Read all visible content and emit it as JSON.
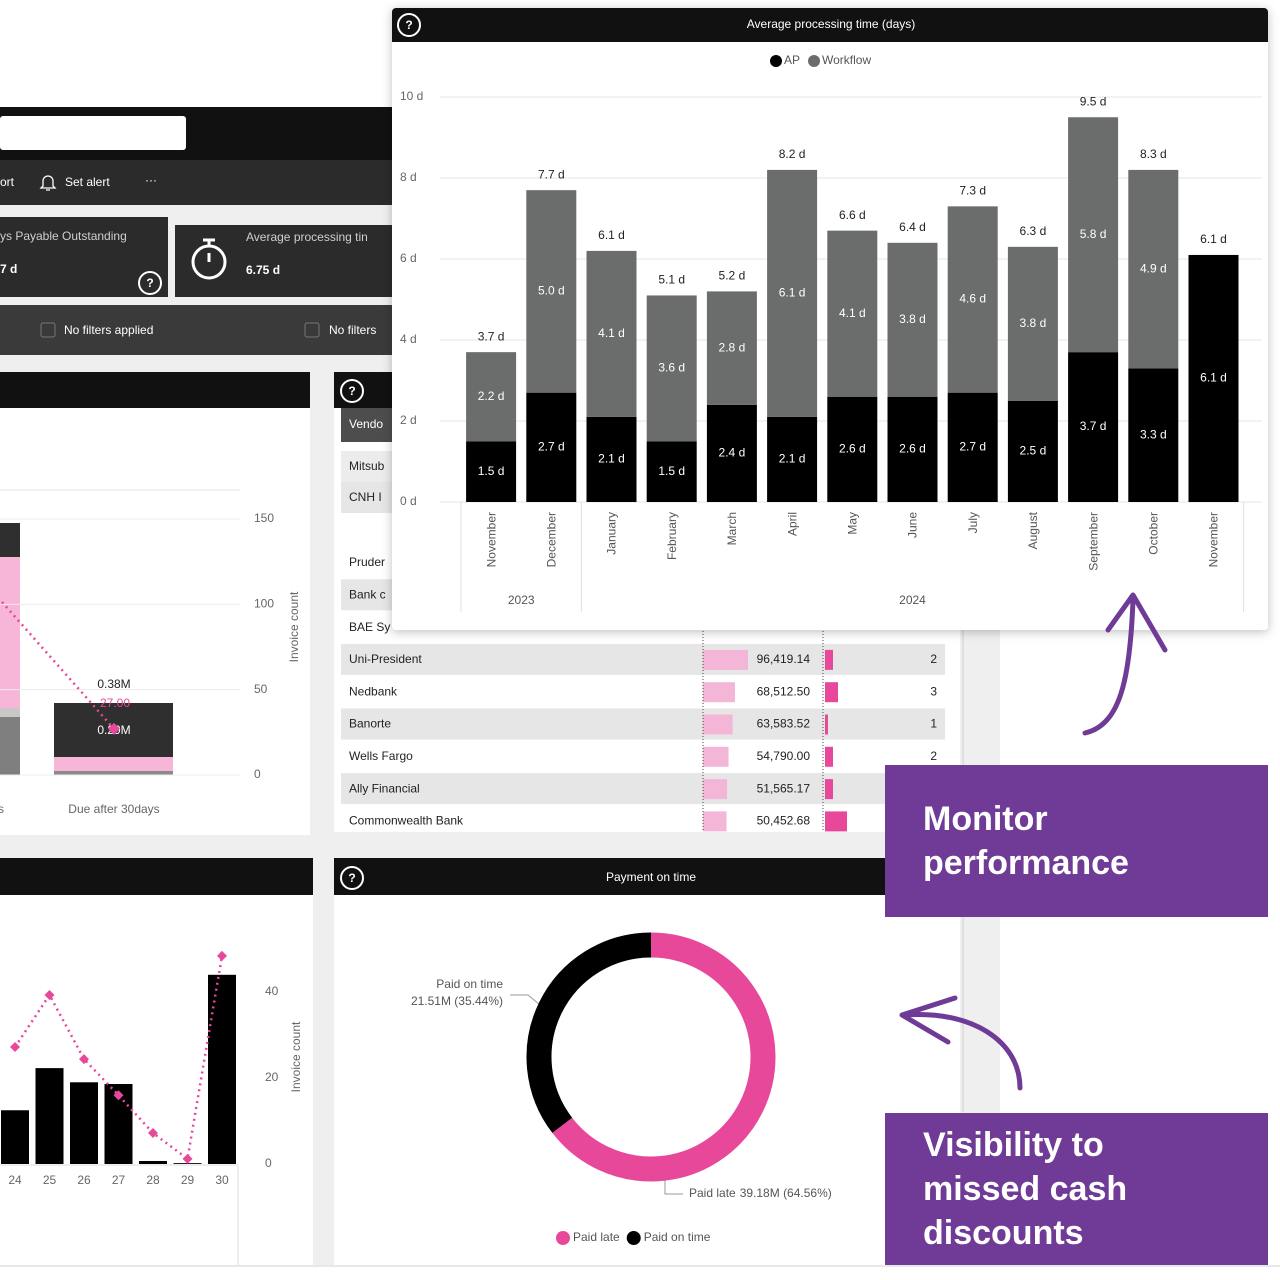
{
  "toolbar": {
    "items": [
      "ort",
      "Set alert",
      "···"
    ]
  },
  "kpis": [
    {
      "label": "ys Payable Outstanding",
      "value": "7 d"
    },
    {
      "label": "Average processing tin",
      "value": "6.75 d"
    }
  ],
  "filters": [
    "No filters applied",
    "No filters"
  ],
  "table": {
    "header": "Vendo",
    "rows": [
      [
        "Mitsub"
      ],
      [
        "CNH I"
      ],
      [
        "Pruder"
      ],
      [
        "Bank c"
      ],
      [
        "BAE Sy"
      ],
      [
        "Uni-President",
        {
          "value": 96419.14,
          "label": "96,419.14"
        },
        2
      ],
      [
        "Nedbank",
        {
          "value": 68512.5,
          "label": "68,512.50"
        },
        3
      ],
      [
        "Banorte",
        {
          "value": 63583.52,
          "label": "63,583.52"
        },
        1
      ],
      [
        "Wells Fargo",
        {
          "value": 54790.0,
          "label": "54,790.00"
        },
        2
      ],
      [
        "Ally Financial",
        {
          "value": 51565.17,
          "label": "51,565.17"
        }
      ],
      [
        "Commonwealth Bank",
        {
          "value": 50452.68,
          "label": "50,452.68"
        }
      ]
    ]
  },
  "callouts": [
    "Monitor performance",
    "Visibility to missed cash discounts"
  ],
  "chart_data": [
    {
      "type": "bar",
      "stacked": true,
      "title": "Average processing time (days)",
      "categories": [
        "November",
        "December",
        "January",
        "February",
        "March",
        "April",
        "May",
        "June",
        "July",
        "August",
        "September",
        "October",
        "November"
      ],
      "groups": [
        {
          "label": "2023",
          "count": 2
        },
        {
          "label": "2024",
          "count": 11
        }
      ],
      "series": [
        {
          "name": "AP",
          "color": "#000000",
          "values": [
            1.5,
            2.7,
            2.1,
            1.5,
            2.4,
            2.1,
            2.6,
            2.6,
            2.7,
            2.5,
            3.7,
            3.3,
            6.1
          ],
          "value_labels": [
            "1.5 d",
            "2.7 d",
            "2.1 d",
            "1.5 d",
            "2.4 d",
            "2.1 d",
            "2.6 d",
            "2.6 d",
            "2.7 d",
            "2.5 d",
            "3.7 d",
            "3.3 d",
            "6.1 d"
          ]
        },
        {
          "name": "Workflow",
          "color": "#6b6c6c",
          "values": [
            2.2,
            5.0,
            4.1,
            3.6,
            2.8,
            6.1,
            4.1,
            3.8,
            4.6,
            3.8,
            5.8,
            4.9,
            null
          ],
          "value_labels": [
            "2.2 d",
            "5.0 d",
            "4.1 d",
            "3.6 d",
            "2.8 d",
            "6.1 d",
            "4.1 d",
            "3.8 d",
            "4.6 d",
            "3.8 d",
            "5.8 d",
            "4.9 d",
            null
          ]
        }
      ],
      "total_labels": [
        "3.7 d",
        "7.7 d",
        "6.1 d",
        "5.1 d",
        "5.2 d",
        "8.2 d",
        "6.6 d",
        "6.4 d",
        "7.3 d",
        "6.3 d",
        "9.5 d",
        "8.3 d",
        "6.1 d"
      ],
      "ylim": [
        0,
        10
      ],
      "yticks": [
        {
          "value": 0,
          "label": "0 d"
        },
        {
          "value": 2,
          "label": "2 d"
        },
        {
          "value": 4,
          "label": "4 d"
        },
        {
          "value": 6,
          "label": "6 d"
        },
        {
          "value": 8,
          "label": "8 d"
        },
        {
          "value": 10,
          "label": "10 d"
        }
      ],
      "grid": true
    },
    {
      "type": "pie",
      "donut": true,
      "title": "Payment on time",
      "categories": [
        "Paid late",
        "Paid on time"
      ],
      "values": [
        64.56,
        35.44
      ],
      "value_labels": [
        "39.18M (64.56%)",
        "21.51M (35.44%)"
      ],
      "colors": [
        "#e8489a",
        "#000000"
      ]
    },
    {
      "type": "bar",
      "categories": [
        "ys",
        "Due after 30days"
      ],
      "y2label": "Invoice count",
      "y2lim": [
        0,
        167
      ],
      "y2ticks": [
        0,
        50,
        100,
        150
      ],
      "series": [
        {
          "axis": "y2",
          "color": "#e8489a",
          "values": [
            104,
            27
          ],
          "value_labels": [
            null,
            "27.00"
          ]
        }
      ],
      "bar_labels": [
        "0.38M",
        "0.29M"
      ],
      "grid": true
    },
    {
      "type": "bar",
      "categories": [
        "24",
        "25",
        "26",
        "27",
        "28",
        "29",
        "30"
      ],
      "ylabel": "Invoice count",
      "ylim": [
        0,
        50
      ],
      "yticks": [
        0,
        20,
        40
      ],
      "series": [
        {
          "color": "#000000",
          "values": [
            12.5,
            22.3,
            19,
            18.6,
            0.7,
            0.2,
            44
          ]
        },
        {
          "mark": "line",
          "color": "#e8489a",
          "values": [
            27.2,
            39.3,
            24.4,
            16,
            7.2,
            1.2,
            48.4
          ]
        }
      ]
    }
  ]
}
